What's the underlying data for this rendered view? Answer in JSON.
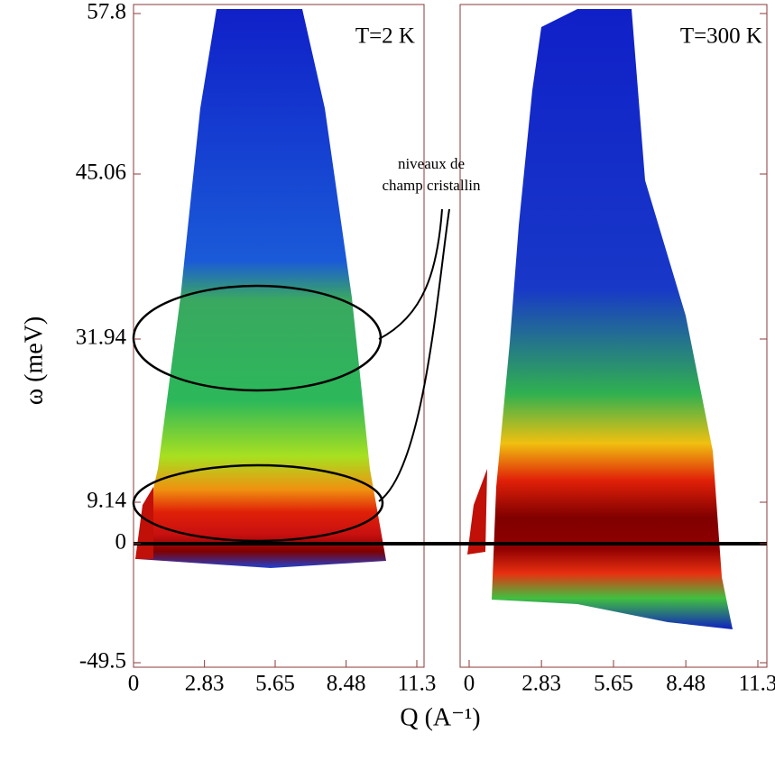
{
  "chart_data": {
    "type": "heatmap",
    "ylabel": "ω (meV)",
    "xlabel": "Q (A⁻¹)",
    "xlim": [
      0,
      11.3
    ],
    "xticks": [
      0,
      2.83,
      5.65,
      8.48,
      11.3
    ],
    "ylim": [
      -49.5,
      57.8
    ],
    "yticks": [
      -49.5,
      0,
      9.14,
      31.94,
      45.06,
      57.8
    ],
    "panels": [
      {
        "annotation": "T=2 K"
      },
      {
        "annotation": "T=300 K"
      }
    ],
    "callout": [
      "niveaux de",
      "champ cristallin"
    ]
  }
}
